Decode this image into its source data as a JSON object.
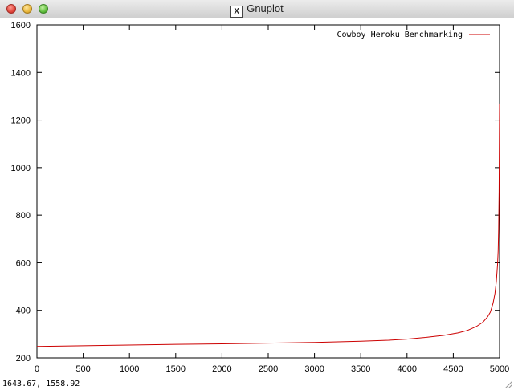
{
  "window": {
    "title": "Gnuplot",
    "icon": "x11-icon",
    "icon_glyph": "X"
  },
  "status": {
    "coordinates": "1643.67,  1558.92"
  },
  "chart_data": {
    "type": "line",
    "title": "",
    "xlabel": "",
    "ylabel": "",
    "xlim": [
      0,
      5000
    ],
    "ylim": [
      200,
      1600
    ],
    "x_ticks": [
      "0",
      "500",
      "1000",
      "1500",
      "2000",
      "2500",
      "3000",
      "3500",
      "4000",
      "4500",
      "5000"
    ],
    "y_ticks": [
      "200",
      "400",
      "600",
      "800",
      "1000",
      "1200",
      "1400",
      "1600"
    ],
    "grid": false,
    "legend_position": "top-right",
    "series": [
      {
        "name": "Cowboy Heroku Benchmarking",
        "color": "#cc0000",
        "x": [
          0,
          500,
          1000,
          1500,
          2000,
          2500,
          3000,
          3500,
          3800,
          4000,
          4200,
          4400,
          4550,
          4650,
          4750,
          4820,
          4870,
          4900,
          4930,
          4950,
          4965,
          4978,
          4985,
          4990,
          4995,
          5000
        ],
        "y": [
          248,
          251,
          254,
          257,
          259,
          262,
          265,
          270,
          274,
          279,
          286,
          295,
          305,
          315,
          332,
          350,
          372,
          392,
          430,
          470,
          520,
          590,
          650,
          740,
          900,
          1270
        ]
      }
    ]
  }
}
